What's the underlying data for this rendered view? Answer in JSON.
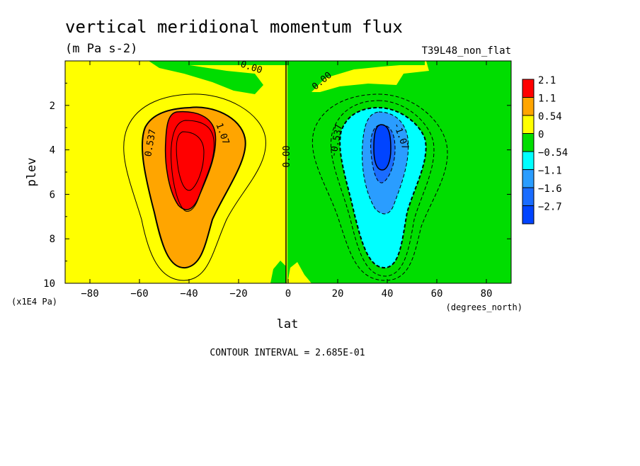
{
  "chart_data": {
    "type": "heatmap",
    "title": "vertical meridional momentum flux",
    "subtitle": "(m Pa s-2)",
    "run_tag": "T39L48_non_flat",
    "xlabel": "lat",
    "xunit": "(degrees_north)",
    "ylabel": "plev",
    "yunit": "(x1E4 Pa)",
    "xlim": [
      -90,
      90
    ],
    "ylim": [
      10,
      0
    ],
    "xticks": [
      -80,
      -60,
      -40,
      -20,
      0,
      20,
      40,
      60,
      80
    ],
    "yticks": [
      2,
      4,
      6,
      8,
      10
    ],
    "contour_interval_text": "CONTOUR INTERVAL = 2.685E-01",
    "levels": [
      {
        "label": "2.1",
        "color": "#ff0000"
      },
      {
        "label": "1.1",
        "color": "#ffa500"
      },
      {
        "label": "0.54",
        "color": "#ffff00"
      },
      {
        "label": "0",
        "color": "#00dd00"
      },
      {
        "label": "−0.54",
        "color": "#00ffff"
      },
      {
        "label": "−1.1",
        "color": "#2a9dff"
      },
      {
        "label": "−1.6",
        "color": "#1a6cff"
      },
      {
        "label": "−2.7",
        "color": "#0044ff"
      }
    ],
    "contour_labels": [
      {
        "text": "0.00",
        "lat": -15,
        "plev": 0.35
      },
      {
        "text": "0.00",
        "lat": 14,
        "plev": 0.95
      },
      {
        "text": "0.00",
        "lat": 0,
        "plev": 4.3
      },
      {
        "text": "0.537",
        "lat": -55,
        "plev": 3.7
      },
      {
        "text": "1.07",
        "lat": -27,
        "plev": 3.3
      },
      {
        "text": "-0.537",
        "lat": 20,
        "plev": 3.6
      },
      {
        "text": "-1.07",
        "lat": 45,
        "plev": 3.4
      }
    ],
    "positive_cell": {
      "lat_center": -38,
      "plev_center": 4.2,
      "max": 2.1
    },
    "negative_cell": {
      "lat_center": 38,
      "plev_center": 4.2,
      "min": -2.7
    },
    "grid": false,
    "legend_position": "right"
  }
}
